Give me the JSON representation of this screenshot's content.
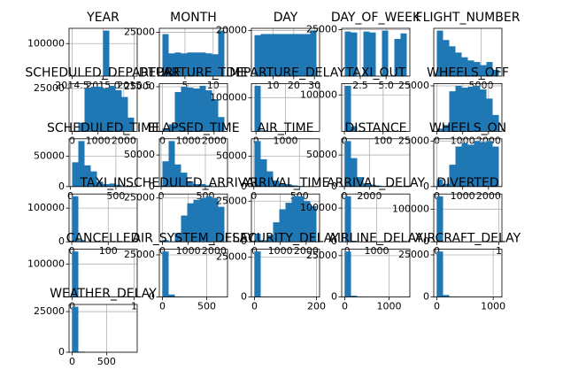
{
  "chart_data": [
    {
      "type": "histogram",
      "title": "YEAR",
      "color": "#1f77b4",
      "grid": true,
      "bins": [
        2014.5,
        2014.6,
        2014.7,
        2014.8,
        2014.9,
        2015.0,
        2015.1,
        2015.2,
        2015.3,
        2015.4,
        2015.5
      ],
      "values": [
        0,
        0,
        0,
        0,
        0,
        140000,
        0,
        0,
        0,
        0
      ],
      "xlim": [
        2014.45,
        2015.55
      ],
      "ylim": [
        0,
        147000
      ],
      "xticks": [
        {
          "value": 2014.5,
          "label": "2014.5"
        },
        {
          "value": 2015,
          "label": "2015.0"
        },
        {
          "value": 2015.5,
          "label": "2015.5"
        }
      ],
      "yticks": [
        100000
      ]
    },
    {
      "type": "histogram",
      "title": "MONTH",
      "color": "#1f77b4",
      "grid": true,
      "bins": [
        1,
        2.1,
        3.2,
        4.3,
        5.4,
        6.5,
        7.6,
        8.7,
        9.8,
        10.9,
        12
      ],
      "values": [
        24000,
        13000,
        13500,
        13000,
        13500,
        13500,
        13500,
        13000,
        12500,
        26000
      ],
      "xlim": [
        0.45,
        12.55
      ],
      "ylim": [
        0,
        27300
      ],
      "xticks": [
        5,
        10
      ],
      "yticks": [
        25000
      ]
    },
    {
      "type": "histogram",
      "title": "DAY",
      "color": "#1f77b4",
      "grid": true,
      "bins": [
        1,
        4,
        7,
        10,
        13,
        16,
        19,
        22,
        25,
        28,
        31
      ],
      "values": [
        18000,
        18500,
        18500,
        18500,
        18500,
        18500,
        18500,
        18500,
        18500,
        20000
      ],
      "xlim": [
        -0.5,
        32.5
      ],
      "ylim": [
        0,
        21000
      ],
      "xticks": [
        10,
        20,
        30
      ],
      "yticks": [
        20000
      ]
    },
    {
      "type": "histogram",
      "title": "DAY_OF_WEEK",
      "color": "#1f77b4",
      "grid": true,
      "bins": [
        1,
        1.6,
        2.2,
        2.8,
        3.4,
        4,
        4.6,
        5.2,
        5.8,
        6.4,
        7
      ],
      "values": [
        24000,
        23500,
        0,
        24000,
        23500,
        0,
        24500,
        0,
        20000,
        23000
      ],
      "xlim": [
        0.7,
        7.3
      ],
      "ylim": [
        0,
        25725
      ],
      "xticks": [
        {
          "value": 2.5,
          "label": "2.5"
        },
        {
          "value": 5,
          "label": "5.0"
        }
      ],
      "yticks": [
        25000
      ]
    },
    {
      "type": "histogram",
      "title": "FLIGHT_NUMBER",
      "color": "#1f77b4",
      "grid": true,
      "bins": [
        0,
        700,
        1400,
        2100,
        2800,
        3500,
        4200,
        4900,
        5600,
        6300,
        7000
      ],
      "values": [
        29000,
        23000,
        19000,
        15000,
        12000,
        10000,
        9000,
        7000,
        9000,
        4000
      ],
      "xlim": [
        -350,
        7350
      ],
      "ylim": [
        0,
        30450
      ],
      "xticks": [
        5000
      ],
      "yticks": []
    },
    {
      "type": "histogram",
      "title": "SCHEDULED_DEPARTURE",
      "color": "#1f77b4",
      "grid": true,
      "bins": [
        0,
        240,
        480,
        720,
        960,
        1200,
        1440,
        1680,
        1920,
        2160,
        2400
      ],
      "values": [
        300,
        5000,
        25000,
        26000,
        26000,
        25000,
        26500,
        24000,
        20000,
        8000
      ],
      "xlim": [
        -120,
        2520
      ],
      "ylim": [
        0,
        27825
      ],
      "xticks": [
        0,
        1000,
        2000
      ],
      "yticks": [
        25000
      ]
    },
    {
      "type": "histogram",
      "title": "DEPARTURE_TIME",
      "color": "#1f77b4",
      "grid": true,
      "bins": [
        0,
        240,
        480,
        720,
        960,
        1200,
        1440,
        1680,
        1920,
        2160,
        2400
      ],
      "values": [
        1500,
        4000,
        22000,
        25000,
        24500,
        24000,
        25500,
        23000,
        18000,
        8000
      ],
      "xlim": [
        -120,
        2520
      ],
      "ylim": [
        0,
        26775
      ],
      "xticks": [
        0,
        1000,
        2000
      ],
      "yticks": [
        25000
      ]
    },
    {
      "type": "histogram",
      "title": "DEPARTURE_DELAY",
      "color": "#1f77b4",
      "grid": true,
      "bins": [
        -50,
        160,
        370,
        580,
        790,
        1000,
        1210,
        1420,
        1630,
        1840,
        2050
      ],
      "values": [
        135000,
        3000,
        500,
        100,
        40,
        20,
        10,
        5,
        2,
        1
      ],
      "xlim": [
        -155,
        2155
      ],
      "ylim": [
        0,
        141750
      ],
      "xticks": [
        0,
        1000
      ],
      "yticks": [
        100000
      ]
    },
    {
      "type": "histogram",
      "title": "TAXI_OUT",
      "color": "#1f77b4",
      "grid": true,
      "bins": [
        1,
        17,
        33,
        49,
        65,
        81,
        97,
        113,
        129,
        145,
        161
      ],
      "values": [
        125000,
        14000,
        1000,
        200,
        60,
        20,
        10,
        5,
        2,
        1
      ],
      "xlim": [
        -7,
        169
      ],
      "ylim": [
        0,
        131250
      ],
      "xticks": [
        0,
        100
      ],
      "yticks": [
        100000
      ]
    },
    {
      "type": "histogram",
      "title": "WHEELS_OFF",
      "color": "#1f77b4",
      "grid": true,
      "bins": [
        0,
        240,
        480,
        720,
        960,
        1200,
        1440,
        1680,
        1920,
        2160,
        2400
      ],
      "values": [
        1500,
        3500,
        22000,
        25000,
        24000,
        24500,
        25000,
        23000,
        18000,
        9000
      ],
      "xlim": [
        -120,
        2520
      ],
      "ylim": [
        0,
        26250
      ],
      "xticks": [
        0,
        1000,
        2000
      ],
      "yticks": [
        25000
      ]
    },
    {
      "type": "histogram",
      "title": "SCHEDULED_TIME",
      "color": "#1f77b4",
      "grid": true,
      "bins": [
        20,
        88,
        156,
        224,
        292,
        360,
        428,
        496,
        564,
        632,
        700
      ],
      "values": [
        40000,
        75000,
        35000,
        25000,
        8000,
        4000,
        5000,
        3000,
        300,
        100
      ],
      "xlim": [
        -14,
        734
      ],
      "ylim": [
        0,
        78750
      ],
      "xticks": [
        0,
        500
      ],
      "yticks": [
        0,
        50000
      ]
    },
    {
      "type": "histogram",
      "title": "ELAPSED_TIME",
      "color": "#1f77b4",
      "grid": true,
      "bins": [
        15,
        85,
        155,
        225,
        295,
        365,
        435,
        505,
        575,
        645,
        715
      ],
      "values": [
        40000,
        72000,
        35000,
        22000,
        8000,
        4000,
        4000,
        2000,
        300,
        100
      ],
      "xlim": [
        -20,
        750
      ],
      "ylim": [
        0,
        75600
      ],
      "xticks": [
        0,
        500
      ],
      "yticks": [
        0,
        50000
      ]
    },
    {
      "type": "histogram",
      "title": "AIR_TIME",
      "color": "#1f77b4",
      "grid": true,
      "bins": [
        7,
        75,
        143,
        211,
        279,
        347,
        415,
        483,
        551,
        619,
        687
      ],
      "values": [
        75000,
        45000,
        25000,
        10000,
        5000,
        4000,
        2000,
        1000,
        200,
        50
      ],
      "xlim": [
        -27,
        721
      ],
      "ylim": [
        0,
        78750
      ],
      "xticks": [
        0,
        500
      ],
      "yticks": [
        0,
        50000
      ]
    },
    {
      "type": "histogram",
      "title": "DISTANCE",
      "color": "#1f77b4",
      "grid": true,
      "bins": [
        31,
        526.2,
        1021.4,
        1516.6,
        2011.8,
        2507,
        3002.2,
        3497.4,
        3992.6,
        4487.8,
        4983
      ],
      "values": [
        72000,
        45000,
        15000,
        5000,
        3000,
        1500,
        800,
        500,
        50,
        20
      ],
      "xlim": [
        -216.6,
        5230.6
      ],
      "ylim": [
        0,
        75600
      ],
      "xticks": [
        0,
        2000
      ],
      "yticks": [
        0,
        50000
      ]
    },
    {
      "type": "histogram",
      "title": "WHEELS_ON",
      "color": "#1f77b4",
      "grid": true,
      "bins": [
        0,
        240,
        480,
        720,
        960,
        1200,
        1440,
        1680,
        1920,
        2160,
        2400
      ],
      "values": [
        4000,
        1500,
        12000,
        22000,
        24000,
        23000,
        25000,
        24500,
        25000,
        22000
      ],
      "xlim": [
        -120,
        2520
      ],
      "ylim": [
        0,
        26250
      ],
      "xticks": [
        0,
        1000,
        2000
      ],
      "yticks": [
        0,
        25000
      ]
    },
    {
      "type": "histogram",
      "title": "TAXI_IN",
      "color": "#1f77b4",
      "grid": true,
      "bins": [
        1,
        18,
        35,
        52,
        69,
        86,
        103,
        120,
        137,
        154,
        171
      ],
      "values": [
        135000,
        5000,
        600,
        150,
        50,
        20,
        10,
        5,
        2,
        1
      ],
      "xlim": [
        -7.5,
        179.5
      ],
      "ylim": [
        0,
        141750
      ],
      "xticks": [
        0,
        100
      ],
      "yticks": [
        0,
        100000
      ]
    },
    {
      "type": "histogram",
      "title": "SCHEDULED_ARRIVAL",
      "color": "#1f77b4",
      "grid": true,
      "bins": [
        0,
        240,
        480,
        720,
        960,
        1200,
        1440,
        1680,
        1920,
        2160,
        2400
      ],
      "values": [
        1000,
        300,
        5000,
        15000,
        22000,
        24000,
        25000,
        26000,
        25000,
        20000
      ],
      "xlim": [
        -120,
        2520
      ],
      "ylim": [
        0,
        27300
      ],
      "xticks": [
        0,
        1000,
        2000
      ],
      "yticks": [
        25000
      ]
    },
    {
      "type": "histogram",
      "title": "ARRIVAL_TIME",
      "color": "#1f77b4",
      "grid": true,
      "bins": [
        0,
        240,
        480,
        720,
        960,
        1200,
        1440,
        1680,
        1920,
        2160,
        2400
      ],
      "values": [
        5000,
        1000,
        4000,
        12000,
        20000,
        24000,
        28000,
        28000,
        25000,
        22000
      ],
      "xlim": [
        -120,
        2520
      ],
      "ylim": [
        0,
        29400
      ],
      "xticks": [
        0,
        1000,
        2000
      ],
      "yticks": [
        0,
        25000
      ]
    },
    {
      "type": "histogram",
      "title": "ARRIVAL_DELAY",
      "color": "#1f77b4",
      "grid": true,
      "bins": [
        -80,
        130,
        340,
        550,
        760,
        970,
        1180,
        1390,
        1600,
        1810,
        2020
      ],
      "values": [
        135000,
        3000,
        500,
        100,
        40,
        20,
        10,
        5,
        2,
        1
      ],
      "xlim": [
        -185,
        2125
      ],
      "ylim": [
        0,
        141750
      ],
      "xticks": [
        0,
        1000
      ],
      "yticks": [
        0,
        100000
      ]
    },
    {
      "type": "histogram",
      "title": "DIVERTED",
      "color": "#1f77b4",
      "grid": true,
      "bins": [
        0,
        0.1,
        0.2,
        0.3,
        0.4,
        0.5,
        0.6,
        0.7,
        0.8,
        0.9,
        1
      ],
      "values": [
        139500,
        0,
        0,
        0,
        0,
        0,
        0,
        0,
        0,
        500
      ],
      "xlim": [
        -0.05,
        1.05
      ],
      "ylim": [
        0,
        146475
      ],
      "xticks": [
        0,
        1
      ],
      "yticks": [
        0,
        100000
      ]
    },
    {
      "type": "histogram",
      "title": "CANCELLED",
      "color": "#1f77b4",
      "grid": true,
      "bins": [
        0,
        0.1,
        0.2,
        0.3,
        0.4,
        0.5,
        0.6,
        0.7,
        0.8,
        0.9,
        1
      ],
      "values": [
        138000,
        0,
        0,
        0,
        0,
        0,
        0,
        0,
        0,
        2000
      ],
      "xlim": [
        -0.05,
        1.05
      ],
      "ylim": [
        0,
        144900
      ],
      "xticks": [
        0,
        1
      ],
      "yticks": [
        100000
      ]
    },
    {
      "type": "histogram",
      "title": "AIR_SYSTEM_DELAY",
      "color": "#1f77b4",
      "grid": true,
      "bins": [
        0,
        70,
        140,
        210,
        280,
        350,
        420,
        490,
        560,
        630,
        700
      ],
      "values": [
        27000,
        1500,
        200,
        50,
        20,
        10,
        5,
        2,
        1,
        1
      ],
      "xlim": [
        -35,
        735
      ],
      "ylim": [
        0,
        28350
      ],
      "xticks": [
        0,
        500
      ],
      "yticks": [
        0,
        25000
      ]
    },
    {
      "type": "histogram",
      "title": "SECURITY_DELAY",
      "color": "#1f77b4",
      "grid": true,
      "bins": [
        0,
        20,
        40,
        60,
        80,
        100,
        120,
        140,
        160,
        180,
        200
      ],
      "values": [
        28500,
        100,
        30,
        10,
        5,
        3,
        2,
        1,
        1,
        1
      ],
      "xlim": [
        -10,
        210
      ],
      "ylim": [
        0,
        29925
      ],
      "xticks": [
        0,
        200
      ],
      "yticks": [
        0,
        25000
      ]
    },
    {
      "type": "histogram",
      "title": "AIRLINE_DELAY",
      "color": "#1f77b4",
      "grid": true,
      "bins": [
        0,
        140,
        280,
        420,
        560,
        700,
        840,
        980,
        1120,
        1260,
        1400
      ],
      "values": [
        27500,
        800,
        150,
        50,
        20,
        10,
        5,
        3,
        2,
        1
      ],
      "xlim": [
        -70,
        1470
      ],
      "ylim": [
        0,
        28875
      ],
      "xticks": [
        0,
        1000
      ],
      "yticks": [
        0,
        25000
      ]
    },
    {
      "type": "histogram",
      "title": "AIRCRAFT_DELAY",
      "color": "#1f77b4",
      "grid": true,
      "bins": [
        0,
        110,
        220,
        330,
        440,
        550,
        660,
        770,
        880,
        990,
        1100
      ],
      "values": [
        27000,
        1200,
        200,
        60,
        20,
        10,
        5,
        2,
        1,
        1
      ],
      "xlim": [
        -55,
        1155
      ],
      "ylim": [
        0,
        28350
      ],
      "xticks": [
        0,
        1000
      ],
      "yticks": [
        0,
        25000
      ]
    },
    {
      "type": "histogram",
      "title": "WEATHER_DELAY",
      "color": "#1f77b4",
      "grid": true,
      "bins": [
        0,
        90,
        180,
        270,
        360,
        450,
        540,
        630,
        720,
        810,
        900
      ],
      "values": [
        28000,
        400,
        100,
        30,
        10,
        5,
        3,
        2,
        1,
        1
      ],
      "xlim": [
        -45,
        945
      ],
      "ylim": [
        0,
        29400
      ],
      "xticks": [
        0,
        500
      ],
      "yticks": [
        0,
        25000
      ]
    }
  ]
}
